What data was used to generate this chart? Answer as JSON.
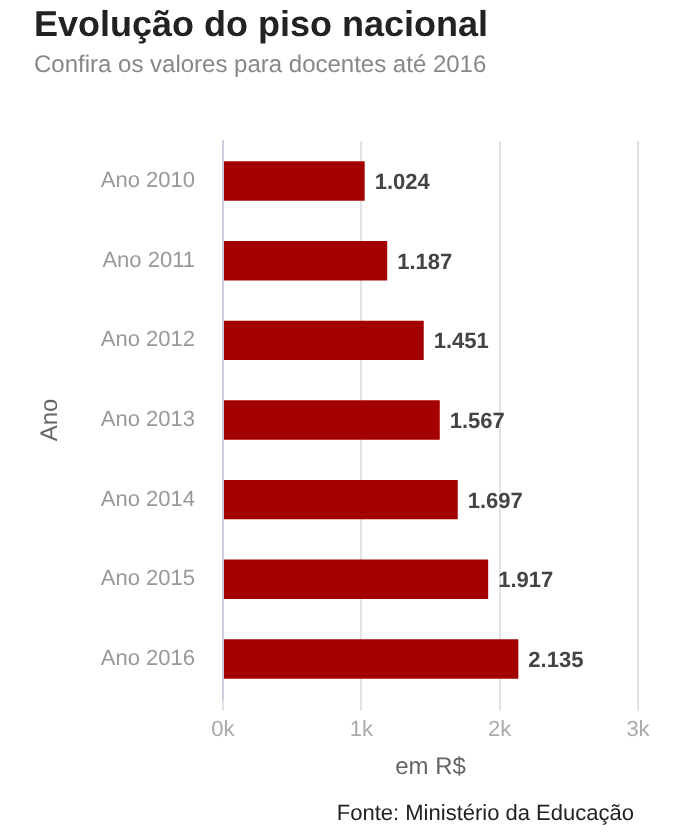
{
  "chart_data": {
    "type": "bar",
    "orientation": "horizontal",
    "title": "Evolução do piso nacional",
    "subtitle": "Confira os valores para docentes até 2016",
    "xlabel": "em R$",
    "ylabel": "Ano",
    "categories": [
      "Ano 2010",
      "Ano 2011",
      "Ano 2012",
      "Ano 2013",
      "Ano 2014",
      "Ano 2015",
      "Ano 2016"
    ],
    "values": [
      1024,
      1187,
      1451,
      1567,
      1697,
      1917,
      2135
    ],
    "value_labels": [
      "1.024",
      "1.187",
      "1.451",
      "1.567",
      "1.697",
      "1.917",
      "2.135"
    ],
    "color": "#a50000",
    "xlim": [
      0,
      3000
    ],
    "xticks": [
      {
        "value": 0,
        "label": "0k"
      },
      {
        "value": 1000,
        "label": "1k"
      },
      {
        "value": 2000,
        "label": "2k"
      },
      {
        "value": 3000,
        "label": "3k"
      }
    ],
    "grid": "x",
    "legend": false,
    "annotations": [
      "Fonte: Ministério da Educação"
    ]
  }
}
